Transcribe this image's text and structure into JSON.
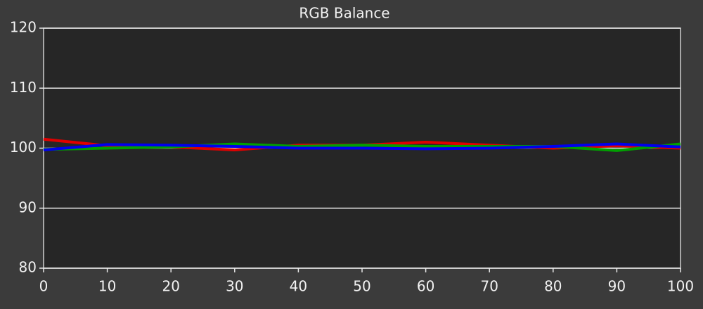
{
  "chart_data": {
    "type": "line",
    "title": "RGB Balance",
    "x": [
      0,
      10,
      20,
      30,
      40,
      50,
      60,
      70,
      80,
      90,
      100
    ],
    "series": [
      {
        "color": "#e00000",
        "values": [
          101.5,
          100.4,
          100.2,
          99.7,
          100.5,
          100.5,
          101,
          100.5,
          100,
          100.4,
          100
        ]
      },
      {
        "color": "#00a000",
        "values": [
          99.8,
          100,
          100.2,
          100.7,
          100.3,
          100.5,
          100.3,
          100.3,
          100.3,
          99.6,
          100.7
        ]
      },
      {
        "color": "#0000ee",
        "values": [
          99.7,
          100.6,
          100.5,
          100.3,
          100,
          100,
          99.9,
          100,
          100.3,
          100.7,
          100.2
        ]
      }
    ],
    "xlim": [
      0,
      100
    ],
    "xticks": [
      0,
      10,
      20,
      30,
      40,
      50,
      60,
      70,
      80,
      90,
      100
    ],
    "ylim": [
      80,
      120
    ],
    "yticks": [
      80,
      90,
      100,
      110,
      120
    ],
    "grid": true
  }
}
